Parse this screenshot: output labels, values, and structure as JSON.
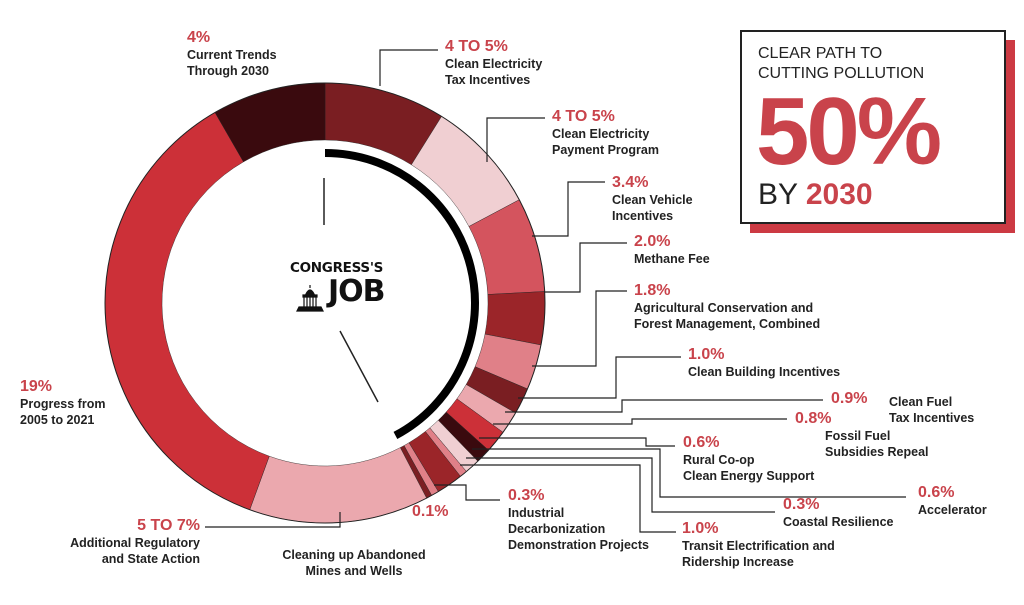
{
  "center": {
    "line1": "CONGRESS'S",
    "line2": "JOB"
  },
  "callout": {
    "line1": "CLEAR PATH TO",
    "line2": "CUTTING POLLUTION",
    "big": "50%",
    "by": "BY",
    "year": "2030"
  },
  "chart_data": {
    "type": "pie",
    "subtype": "donut",
    "unit": "percent reduction",
    "segments": [
      {
        "value_label": "4 TO 5%",
        "label": "Clean Electricity\nTax Incentives",
        "value": 4.5,
        "color": "#7a1e22"
      },
      {
        "value_label": "4 TO 5%",
        "label": "Clean Electricity\nPayment Program",
        "value": 4.5,
        "color": "#f0cfd2"
      },
      {
        "value_label": "3.4%",
        "label": "Clean Vehicle\nIncentives",
        "value": 3.4,
        "color": "#d4545e"
      },
      {
        "value_label": "2.0%",
        "label": "Methane Fee",
        "value": 2.0,
        "color": "#9b2529"
      },
      {
        "value_label": "1.8%",
        "label": "Agricultural Conservation and\nForest Management, Combined",
        "value": 1.8,
        "color": "#e08088"
      },
      {
        "value_label": "1.0%",
        "label": "Clean Building Incentives",
        "value": 1.0,
        "color": "#7a1e22"
      },
      {
        "value_label": "0.9%",
        "label": "Clean Fuel\nTax Incentives",
        "value": 0.9,
        "color": "#eba8ae"
      },
      {
        "value_label": "0.8%",
        "label": "Fossil Fuel\nSubsidies Repeal",
        "value": 0.8,
        "color": "#cc3038"
      },
      {
        "value_label": "0.6%",
        "label": "Rural Co-op\nClean Energy Support",
        "value": 0.6,
        "color": "#3a0a0e"
      },
      {
        "value_label": "0.6%",
        "label": "Accelerator",
        "value": 0.6,
        "color": "#f0cfd2"
      },
      {
        "value_label": "0.3%",
        "label": "Coastal Resilience",
        "value": 0.3,
        "color": "#e08088"
      },
      {
        "value_label": "1.0%",
        "label": "Transit Electrification and\nRidership Increase",
        "value": 1.0,
        "color": "#9b2529"
      },
      {
        "value_label": "0.3%",
        "label": "Industrial\nDecarbonization\nDemonstration Projects",
        "value": 0.3,
        "color": "#e08088"
      },
      {
        "value_label": "0.1%",
        "label": "Cleaning up Abandoned\nMines and Wells",
        "value": 0.1,
        "color": "#7a1e22"
      },
      {
        "value_label": "5 TO 7%",
        "label": "Additional Regulatory\nand State Action",
        "value": 6,
        "color": "#eba8ae"
      },
      {
        "value_label": "19%",
        "label": "Progress from\n2005 to 2021",
        "value": 19,
        "color": "#cc3038"
      },
      {
        "value_label": "4%",
        "label": "Current Trends\nThrough 2030",
        "value": 4,
        "color": "#3a0a0e"
      }
    ]
  }
}
